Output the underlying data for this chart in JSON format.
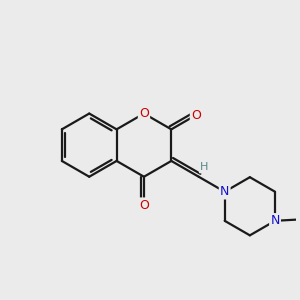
{
  "background_color": "#ebebeb",
  "bond_color": "#1a1a1a",
  "oxygen_color": "#cc0000",
  "nitrogen_color": "#1111cc",
  "hydrogen_color": "#558888",
  "bond_width": 1.6,
  "figsize": [
    3.0,
    3.0
  ],
  "dpi": 100,
  "xlim": [
    -1,
    11
  ],
  "ylim": [
    -1,
    11
  ]
}
